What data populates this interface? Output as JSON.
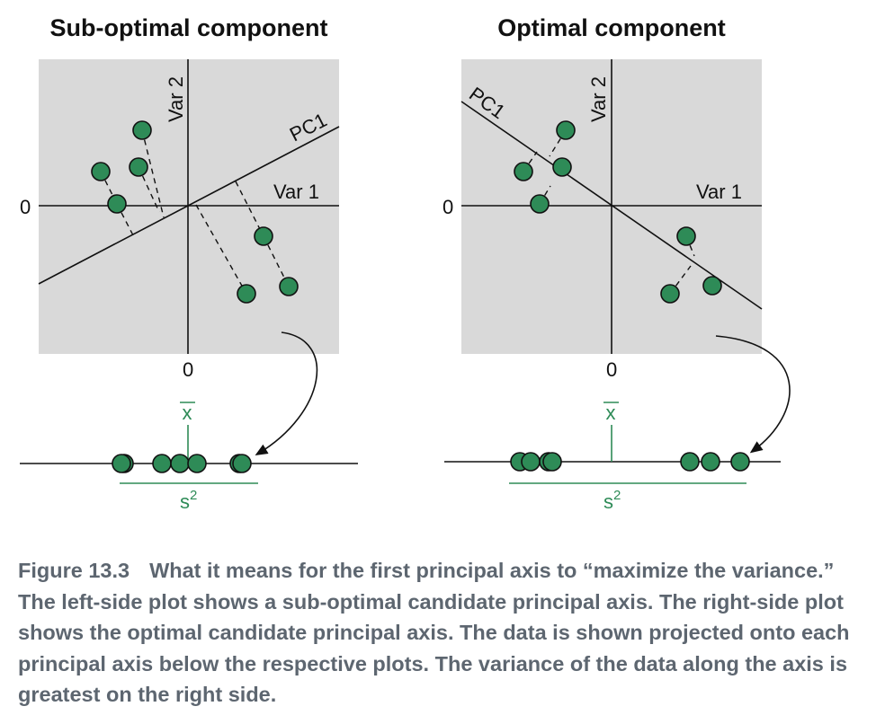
{
  "left_panel": {
    "title": "Sub-optimal component",
    "var1_label": "Var 1",
    "var2_label": "Var 2",
    "pc_label": "PC1",
    "zero_x": "0",
    "zero_y": "0",
    "mean_label": "x",
    "variance_label": "s",
    "variance_exp": "2"
  },
  "right_panel": {
    "title": "Optimal component",
    "var1_label": "Var 1",
    "var2_label": "Var 2",
    "pc_label": "PC1",
    "zero_x": "0",
    "zero_y": "0",
    "mean_label": "x",
    "variance_label": "s",
    "variance_exp": "2"
  },
  "caption": {
    "figure_label": "Figure 13.3",
    "text": "What it means for the first principal axis to “maximize the variance.” The left-side plot shows a sub-optimal candidate principal axis. The right-side plot shows the optimal candidate principal axis. The data is shown projected onto each principal axis below the respective plots. The variance of the data along the axis is greatest on the right side."
  },
  "colors": {
    "point_fill": "#2e8b57",
    "annotation": "#2e8b57",
    "panel_bg": "#d9d9d9",
    "caption_text": "#5d6670"
  }
}
